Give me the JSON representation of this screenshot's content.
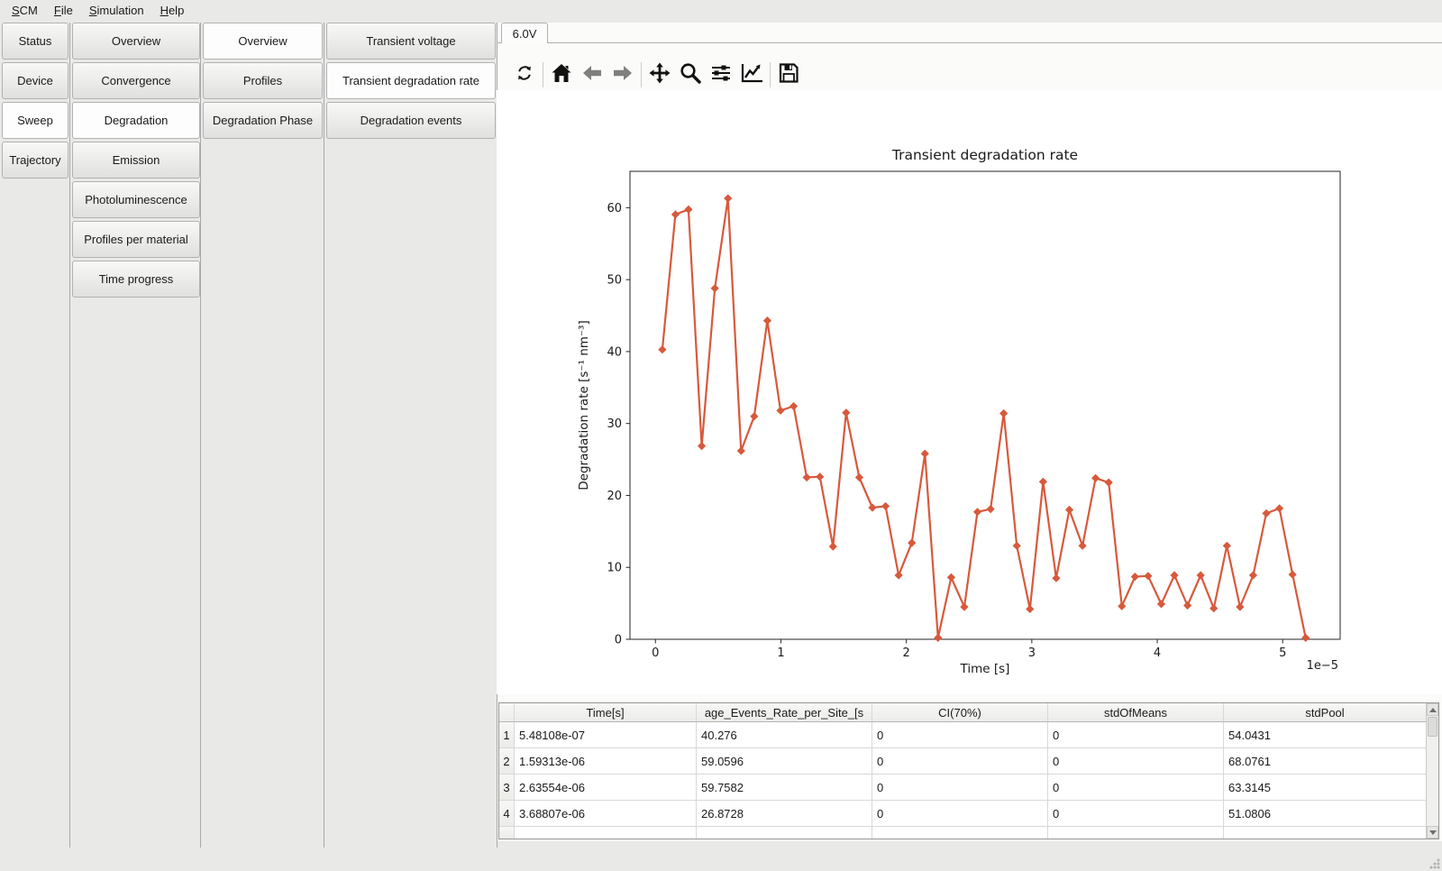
{
  "menu": {
    "items": [
      {
        "label": "SCM"
      },
      {
        "label": "File"
      },
      {
        "label": "Simulation"
      },
      {
        "label": "Help"
      }
    ]
  },
  "nav_columns": [
    {
      "name": "level-1",
      "items": [
        {
          "label": "Status",
          "selected": false
        },
        {
          "label": "Device",
          "selected": false
        },
        {
          "label": "Sweep",
          "selected": true
        },
        {
          "label": "Trajectory",
          "selected": false
        }
      ]
    },
    {
      "name": "level-2",
      "items": [
        {
          "label": "Overview",
          "selected": false
        },
        {
          "label": "Convergence",
          "selected": false
        },
        {
          "label": "Degradation",
          "selected": true
        },
        {
          "label": "Emission",
          "selected": false
        },
        {
          "label": "Photoluminescence",
          "selected": false
        },
        {
          "label": "Profiles per material",
          "selected": false
        },
        {
          "label": "Time progress",
          "selected": false
        }
      ]
    },
    {
      "name": "level-3",
      "items": [
        {
          "label": "Overview",
          "selected": true
        },
        {
          "label": "Profiles",
          "selected": false
        },
        {
          "label": "Degradation Phase",
          "selected": false
        }
      ]
    },
    {
      "name": "level-4",
      "items": [
        {
          "label": "Transient voltage",
          "selected": false
        },
        {
          "label": "Transient degradation rate",
          "selected": true
        },
        {
          "label": "Degradation events",
          "selected": false
        }
      ]
    }
  ],
  "document_tabs": [
    {
      "label": "6.0V",
      "selected": true
    }
  ],
  "toolbar": {
    "groups": [
      [
        "refresh"
      ],
      [
        "home",
        "back",
        "forward"
      ],
      [
        "pan",
        "zoom",
        "subplots",
        "customize"
      ],
      [
        "save"
      ]
    ]
  },
  "chart_data": {
    "type": "line",
    "title": "Transient degradation rate",
    "xlabel": "Time [s]",
    "ylabel": "Degradation rate [s⁻¹ nm⁻³]",
    "x_offset_label": "1e−5",
    "line_color": "#d8593c",
    "marker": "diamond",
    "grid": false,
    "legend": null,
    "xlim": [
      -2.03e-06,
      5.458e-05
    ],
    "ylim": [
      0,
      65.06
    ],
    "xticks": [
      0,
      1e-05,
      2e-05,
      3e-05,
      4e-05,
      5e-05
    ],
    "xtick_labels": [
      "0",
      "1",
      "2",
      "3",
      "4",
      "5"
    ],
    "yticks": [
      0,
      10,
      20,
      30,
      40,
      50,
      60
    ],
    "x": [
      5.48108e-07,
      1.59313e-06,
      2.63554e-06,
      3.68807e-06,
      4.73467e-06,
      5.78127e-06,
      6.82787e-06,
      7.87447e-06,
      8.92107e-06,
      9.96767e-06,
      1.101427e-05,
      1.206087e-05,
      1.310747e-05,
      1.415407e-05,
      1.520067e-05,
      1.624727e-05,
      1.729387e-05,
      1.834047e-05,
      1.938707e-05,
      2.043367e-05,
      2.148027e-05,
      2.252687e-05,
      2.357347e-05,
      2.462007e-05,
      2.566667e-05,
      2.671327e-05,
      2.775987e-05,
      2.880647e-05,
      2.985307e-05,
      3.089967e-05,
      3.194627e-05,
      3.299287e-05,
      3.403947e-05,
      3.508607e-05,
      3.613267e-05,
      3.717927e-05,
      3.822587e-05,
      3.927247e-05,
      4.031907e-05,
      4.136567e-05,
      4.241227e-05,
      4.345887e-05,
      4.450547e-05,
      4.555207e-05,
      4.659867e-05,
      4.764527e-05,
      4.869187e-05,
      4.973847e-05,
      5.078507e-05,
      5.183167e-05
    ],
    "y": [
      40.276,
      59.0596,
      59.7582,
      26.8728,
      48.8,
      61.3,
      26.2,
      31.0,
      44.3,
      31.8,
      32.4,
      22.5,
      22.6,
      12.9,
      31.5,
      22.5,
      18.3,
      18.5,
      8.9,
      13.4,
      25.8,
      0.2,
      8.6,
      4.5,
      17.7,
      18.1,
      31.4,
      13.0,
      4.2,
      21.9,
      8.5,
      18.0,
      13.0,
      22.4,
      21.8,
      4.6,
      8.7,
      8.8,
      4.9,
      8.9,
      4.7,
      8.9,
      4.3,
      13.0,
      4.5,
      8.9,
      17.5,
      18.2,
      9.0,
      0.2
    ]
  },
  "table": {
    "headers": [
      "",
      "Time[s]",
      "age_Events_Rate_per_Site_[s",
      "CI(70%)",
      "stdOfMeans",
      "stdPool"
    ],
    "rows": [
      [
        "1",
        "5.48108e-07",
        "40.276",
        "0",
        "0",
        "54.0431"
      ],
      [
        "2",
        "1.59313e-06",
        "59.0596",
        "0",
        "0",
        "68.0761"
      ],
      [
        "3",
        "2.63554e-06",
        "59.7582",
        "0",
        "0",
        "63.3145"
      ],
      [
        "4",
        "3.68807e-06",
        "26.8728",
        "0",
        "0",
        "51.0806"
      ]
    ]
  }
}
